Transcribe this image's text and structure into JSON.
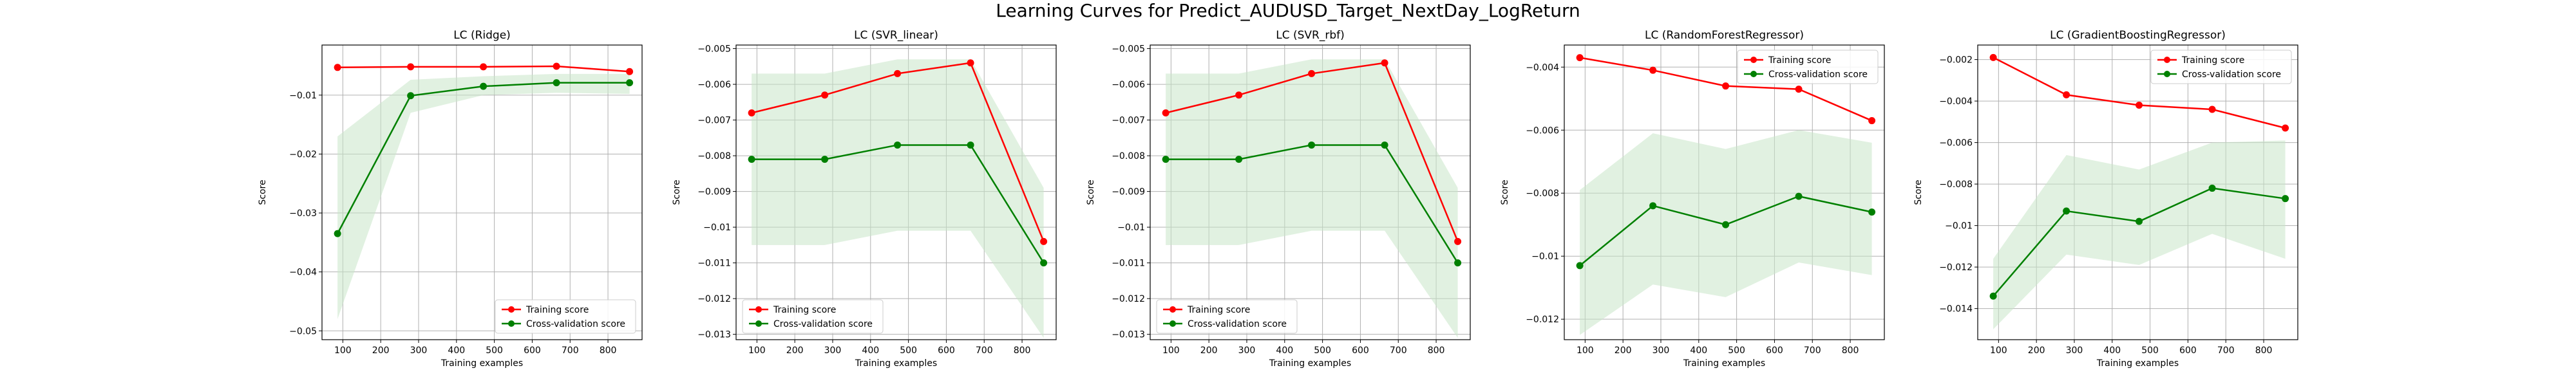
{
  "figure_title": "Learning Curves for Predict_AUDUSD_Target_NextDay_LogReturn",
  "colors": {
    "training": "#ff0000",
    "cv": "#008000",
    "cv_band": "#c8e6c8"
  },
  "chart_data": [
    {
      "type": "line",
      "title": "LC (Ridge)",
      "xlabel": "Training examples",
      "ylabel": "Score",
      "xlim": [
        45,
        890
      ],
      "ylim": [
        -0.0515,
        -0.0015
      ],
      "grid": true,
      "legend": "lower right",
      "xticks": [
        100,
        200,
        300,
        400,
        500,
        600,
        700,
        800
      ],
      "yticks": [
        -0.01,
        -0.02,
        -0.03,
        -0.04,
        -0.05
      ],
      "x": [
        86,
        279,
        471,
        664,
        857
      ],
      "series": [
        {
          "name": "Training score",
          "values": [
            -0.0053,
            -0.0052,
            -0.0052,
            -0.0051,
            -0.006
          ]
        },
        {
          "name": "Cross-validation score",
          "values": [
            -0.0335,
            -0.0101,
            -0.0085,
            -0.0079,
            -0.0079
          ],
          "band_low": [
            -0.048,
            -0.013,
            -0.01,
            -0.0096,
            -0.0098
          ],
          "band_high": [
            -0.017,
            -0.0074,
            -0.0068,
            -0.0064,
            -0.0064
          ]
        }
      ]
    },
    {
      "type": "line",
      "title": "LC (SVR_linear)",
      "xlabel": "Training examples",
      "ylabel": "Score",
      "xlim": [
        45,
        890
      ],
      "ylim": [
        -0.01315,
        -0.0049
      ],
      "grid": true,
      "legend": "lower left",
      "xticks": [
        100,
        200,
        300,
        400,
        500,
        600,
        700,
        800
      ],
      "yticks": [
        -0.005,
        -0.006,
        -0.007,
        -0.008,
        -0.009,
        -0.01,
        -0.011,
        -0.012,
        -0.013
      ],
      "x": [
        86,
        279,
        471,
        664,
        857
      ],
      "series": [
        {
          "name": "Training score",
          "values": [
            -0.0068,
            -0.0063,
            -0.0057,
            -0.0054,
            -0.0104
          ]
        },
        {
          "name": "Cross-validation score",
          "values": [
            -0.0081,
            -0.0081,
            -0.0077,
            -0.0077,
            -0.011
          ],
          "band_low": [
            -0.0105,
            -0.0105,
            -0.0101,
            -0.0101,
            -0.0131
          ],
          "band_high": [
            -0.0057,
            -0.0057,
            -0.0053,
            -0.0053,
            -0.0089
          ]
        }
      ]
    },
    {
      "type": "line",
      "title": "LC (SVR_rbf)",
      "xlabel": "Training examples",
      "ylabel": "Score",
      "xlim": [
        45,
        890
      ],
      "ylim": [
        -0.01315,
        -0.0049
      ],
      "grid": true,
      "legend": "lower left",
      "xticks": [
        100,
        200,
        300,
        400,
        500,
        600,
        700,
        800
      ],
      "yticks": [
        -0.005,
        -0.006,
        -0.007,
        -0.008,
        -0.009,
        -0.01,
        -0.011,
        -0.012,
        -0.013
      ],
      "x": [
        86,
        279,
        471,
        664,
        857
      ],
      "series": [
        {
          "name": "Training score",
          "values": [
            -0.0068,
            -0.0063,
            -0.0057,
            -0.0054,
            -0.0104
          ]
        },
        {
          "name": "Cross-validation score",
          "values": [
            -0.0081,
            -0.0081,
            -0.0077,
            -0.0077,
            -0.011
          ],
          "band_low": [
            -0.0105,
            -0.0105,
            -0.0101,
            -0.0101,
            -0.0131
          ],
          "band_high": [
            -0.0057,
            -0.0057,
            -0.0053,
            -0.0053,
            -0.0089
          ]
        }
      ]
    },
    {
      "type": "line",
      "title": "LC (RandomForestRegressor)",
      "xlabel": "Training examples",
      "ylabel": "Score",
      "xlim": [
        45,
        890
      ],
      "ylim": [
        -0.01265,
        -0.0033
      ],
      "grid": true,
      "legend": "upper right",
      "xticks": [
        100,
        200,
        300,
        400,
        500,
        600,
        700,
        800
      ],
      "yticks": [
        -0.004,
        -0.006,
        -0.008,
        -0.01,
        -0.012
      ],
      "x": [
        86,
        279,
        471,
        664,
        857
      ],
      "series": [
        {
          "name": "Training score",
          "values": [
            -0.0037,
            -0.0041,
            -0.0046,
            -0.0047,
            -0.0057
          ]
        },
        {
          "name": "Cross-validation score",
          "values": [
            -0.0103,
            -0.0084,
            -0.009,
            -0.0081,
            -0.0086
          ],
          "band_low": [
            -0.0125,
            -0.0109,
            -0.0113,
            -0.0102,
            -0.0106
          ],
          "band_high": [
            -0.0079,
            -0.0061,
            -0.0066,
            -0.006,
            -0.0064
          ]
        }
      ]
    },
    {
      "type": "line",
      "title": "LC (GradientBoostingRegressor)",
      "xlabel": "Training examples",
      "ylabel": "Score",
      "xlim": [
        45,
        890
      ],
      "ylim": [
        -0.0155,
        -0.0013
      ],
      "grid": true,
      "legend": "upper right",
      "xticks": [
        100,
        200,
        300,
        400,
        500,
        600,
        700,
        800
      ],
      "yticks": [
        -0.002,
        -0.004,
        -0.006,
        -0.008,
        -0.01,
        -0.012,
        -0.014
      ],
      "x": [
        86,
        279,
        471,
        664,
        857
      ],
      "series": [
        {
          "name": "Training score",
          "values": [
            -0.0019,
            -0.0037,
            -0.0042,
            -0.0044,
            -0.0053
          ]
        },
        {
          "name": "Cross-validation score",
          "values": [
            -0.0134,
            -0.0093,
            -0.0098,
            -0.0082,
            -0.0087
          ],
          "band_low": [
            -0.015,
            -0.0114,
            -0.0119,
            -0.0104,
            -0.0116
          ],
          "band_high": [
            -0.0116,
            -0.0066,
            -0.0073,
            -0.006,
            -0.0059
          ]
        }
      ]
    }
  ]
}
